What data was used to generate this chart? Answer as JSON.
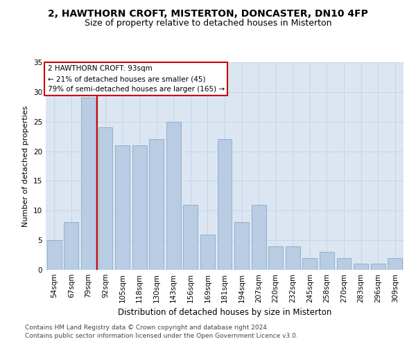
{
  "title1": "2, HAWTHORN CROFT, MISTERTON, DONCASTER, DN10 4FP",
  "title2": "Size of property relative to detached houses in Misterton",
  "xlabel": "Distribution of detached houses by size in Misterton",
  "ylabel": "Number of detached properties",
  "categories": [
    "54sqm",
    "67sqm",
    "79sqm",
    "92sqm",
    "105sqm",
    "118sqm",
    "130sqm",
    "143sqm",
    "156sqm",
    "169sqm",
    "181sqm",
    "194sqm",
    "207sqm",
    "220sqm",
    "232sqm",
    "245sqm",
    "258sqm",
    "270sqm",
    "283sqm",
    "296sqm",
    "309sqm"
  ],
  "values": [
    5,
    8,
    29,
    24,
    21,
    21,
    22,
    25,
    11,
    6,
    22,
    8,
    11,
    4,
    4,
    2,
    3,
    2,
    1,
    1,
    2
  ],
  "bar_color": "#b8cce4",
  "bar_edge_color": "#8baabf",
  "vline_x_index": 2,
  "annotation_line1": "2 HAWTHORN CROFT: 93sqm",
  "annotation_line2": "← 21% of detached houses are smaller (45)",
  "annotation_line3": "79% of semi-detached houses are larger (165) →",
  "annotation_box_color": "#ffffff",
  "annotation_border_color": "#cc0000",
  "vline_color": "#cc0000",
  "grid_color": "#c8d4e4",
  "background_color": "#dce6f2",
  "ylim": [
    0,
    35
  ],
  "yticks": [
    0,
    5,
    10,
    15,
    20,
    25,
    30,
    35
  ],
  "footer1": "Contains HM Land Registry data © Crown copyright and database right 2024.",
  "footer2": "Contains public sector information licensed under the Open Government Licence v3.0.",
  "title1_fontsize": 10,
  "title2_fontsize": 9,
  "xlabel_fontsize": 8.5,
  "ylabel_fontsize": 8,
  "tick_fontsize": 7.5,
  "annotation_fontsize": 7.5,
  "footer_fontsize": 6.5
}
